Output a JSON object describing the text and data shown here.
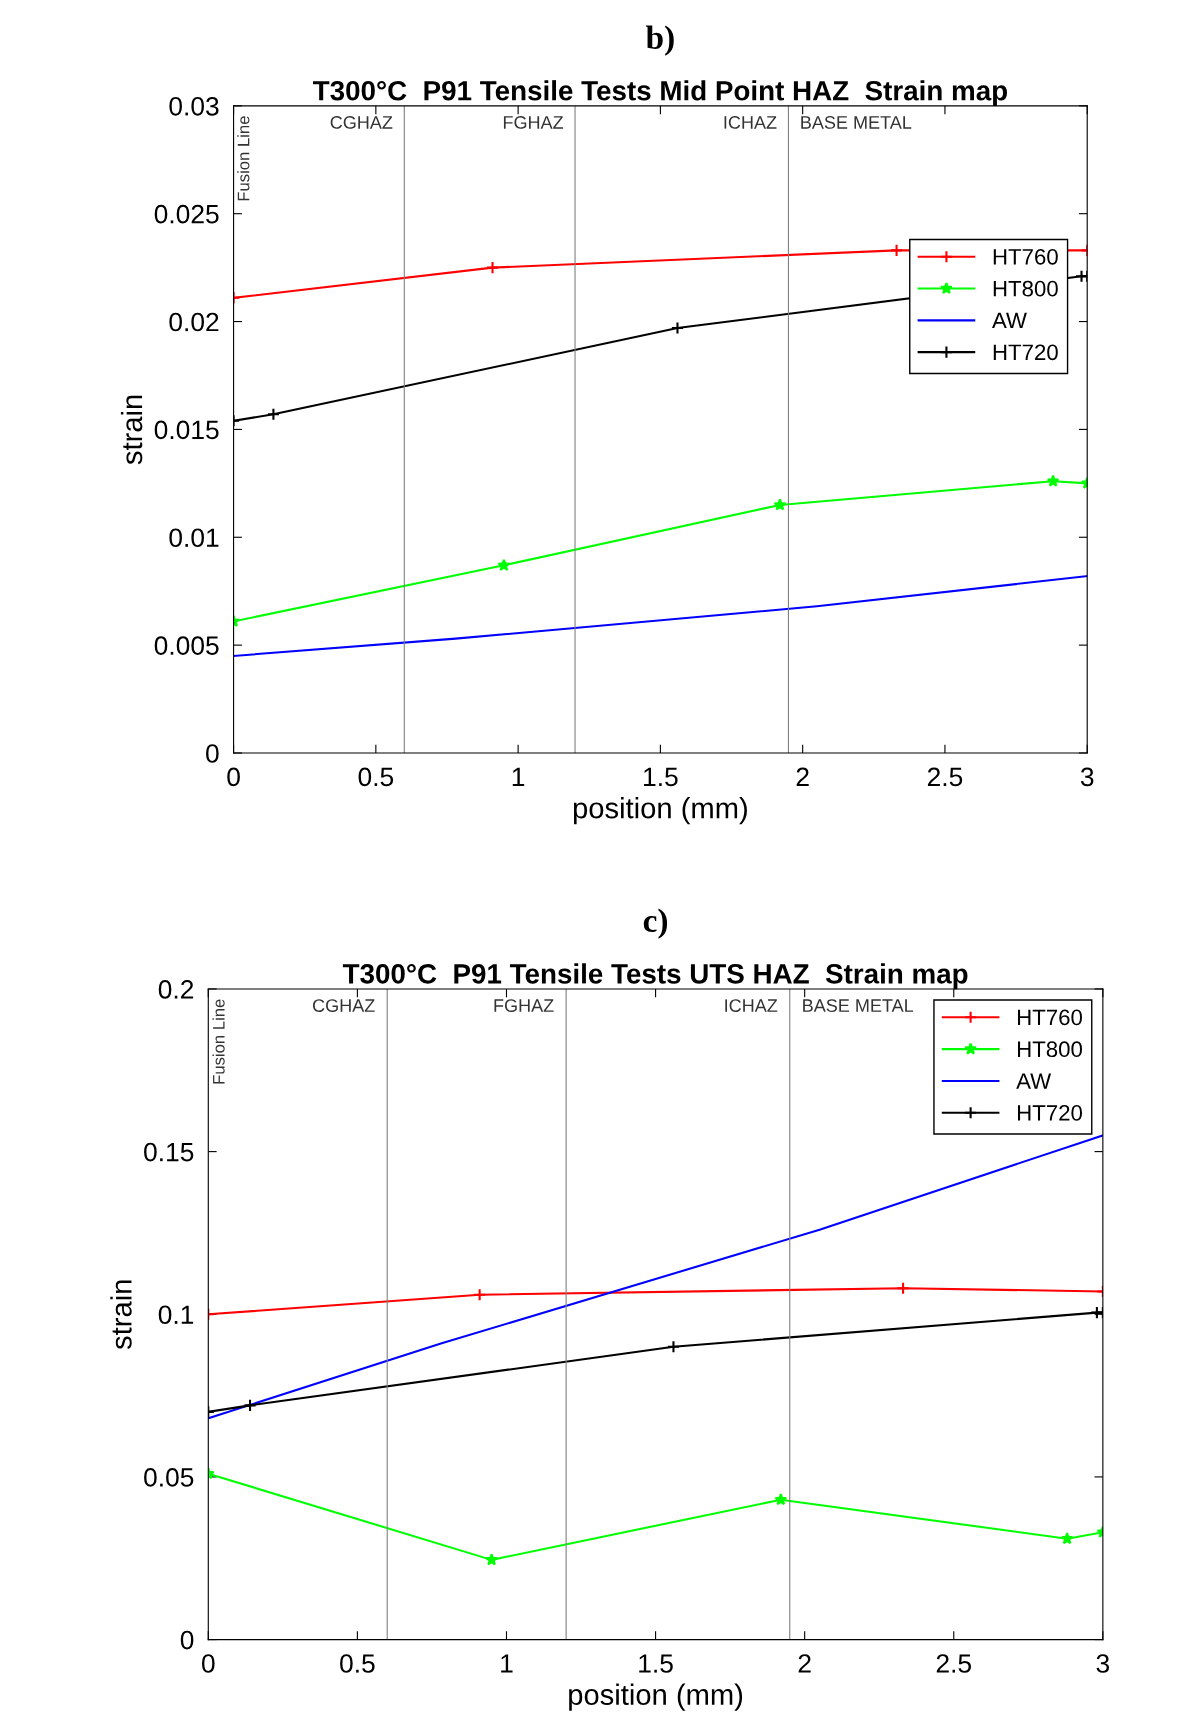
{
  "chart_data": [
    {
      "type": "line",
      "title": "b)",
      "subtitle": "T300°C  P91 Tensile Tests Mid Point HAZ  Strain map",
      "xlabel": "position (mm)",
      "ylabel": "strain",
      "series": [
        {
          "name": "HT760",
          "color": "#ff0000",
          "marker": "cross",
          "x": [
            0,
            0.91,
            2.33,
            3
          ],
          "values": [
            0.0211,
            0.0225,
            0.0233,
            0.0233
          ]
        },
        {
          "name": "HT800",
          "color": "#00ff00",
          "marker": "star",
          "x": [
            0,
            0.95,
            1.92,
            2.88,
            3
          ],
          "values": [
            0.0061,
            0.0087,
            0.0115,
            0.0126,
            0.0125
          ]
        },
        {
          "name": "AW",
          "color": "#0000ff",
          "marker": "none",
          "x": [
            0,
            0.78,
            2.05,
            3
          ],
          "values": [
            0.0045,
            0.0053,
            0.0068,
            0.0082
          ]
        },
        {
          "name": "HT720",
          "color": "#000000",
          "marker": "cross",
          "x": [
            0,
            0.14,
            1.56,
            2.98,
            3
          ],
          "values": [
            0.0154,
            0.0157,
            0.0197,
            0.0221,
            0.0221
          ]
        }
      ],
      "xlim": [
        0,
        3
      ],
      "xticks": [
        0,
        0.5,
        1,
        1.5,
        2,
        2.5,
        3
      ],
      "ylim": [
        0,
        0.03
      ],
      "yticks": [
        0,
        0.005,
        0.01,
        0.015,
        0.02,
        0.025,
        0.03
      ],
      "ref_lines": [
        {
          "axis": "x",
          "value": 0.6,
          "color": "#808080"
        },
        {
          "axis": "x",
          "value": 1.2,
          "color": "#808080"
        },
        {
          "axis": "x",
          "value": 1.95,
          "color": "#808080"
        }
      ],
      "annotations": [
        "Fusion Line",
        "CGHAZ",
        "FGHAZ",
        "ICHAZ",
        "BASE METAL"
      ],
      "legend": "right",
      "grid": false
    },
    {
      "type": "line",
      "title": "c)",
      "subtitle": "T300°C  P91 Tensile Tests UTS HAZ  Strain map",
      "xlabel": "position (mm)",
      "ylabel": "strain",
      "series": [
        {
          "name": "HT760",
          "color": "#ff0000",
          "marker": "cross",
          "x": [
            0,
            0.91,
            2.33,
            3
          ],
          "values": [
            0.1,
            0.106,
            0.108,
            0.107
          ]
        },
        {
          "name": "HT800",
          "color": "#00ff00",
          "marker": "star",
          "x": [
            0,
            0.95,
            1.92,
            2.88,
            3
          ],
          "values": [
            0.051,
            0.0245,
            0.043,
            0.031,
            0.033
          ]
        },
        {
          "name": "AW",
          "color": "#0000ff",
          "marker": "none",
          "x": [
            0,
            0.78,
            2.05,
            3
          ],
          "values": [
            0.068,
            0.091,
            0.126,
            0.155
          ]
        },
        {
          "name": "HT720",
          "color": "#000000",
          "marker": "cross",
          "x": [
            0,
            0.14,
            1.56,
            2.98,
            3
          ],
          "values": [
            0.07,
            0.072,
            0.09,
            0.1005,
            0.1005
          ]
        }
      ],
      "xlim": [
        0,
        3
      ],
      "xticks": [
        0,
        0.5,
        1,
        1.5,
        2,
        2.5,
        3
      ],
      "ylim": [
        0,
        0.2
      ],
      "yticks": [
        0,
        0.05,
        0.1,
        0.15,
        0.2
      ],
      "ref_lines": [
        {
          "axis": "x",
          "value": 0.6,
          "color": "#808080"
        },
        {
          "axis": "x",
          "value": 1.2,
          "color": "#808080"
        },
        {
          "axis": "x",
          "value": 1.95,
          "color": "#808080"
        }
      ],
      "annotations": [
        "Fusion Line",
        "CGHAZ",
        "FGHAZ",
        "ICHAZ",
        "BASE METAL"
      ],
      "legend": "top right",
      "grid": false
    }
  ]
}
